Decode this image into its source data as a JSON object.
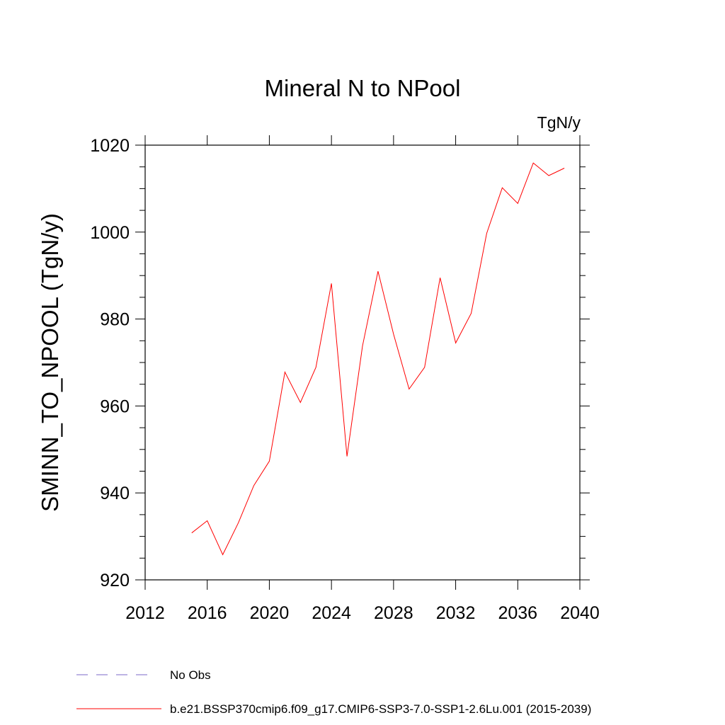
{
  "chart_data": {
    "type": "line",
    "title": "Mineral N to NPool",
    "units": "TgN/y",
    "ylabel": "SMINN_TO_NPOOL  (TgN/y)",
    "xlabel": "",
    "xlim": [
      2012,
      2040
    ],
    "ylim": [
      920,
      1020
    ],
    "xticks": [
      2012,
      2016,
      2020,
      2024,
      2028,
      2032,
      2036,
      2040
    ],
    "yticks": [
      920,
      940,
      960,
      980,
      1000,
      1020
    ],
    "x": [
      2015,
      2016,
      2017,
      2018,
      2019,
      2020,
      2021,
      2022,
      2023,
      2024,
      2025,
      2026,
      2027,
      2028,
      2029,
      2030,
      2031,
      2032,
      2033,
      2034,
      2035,
      2036,
      2037,
      2038,
      2039
    ],
    "series": [
      {
        "name": "b.e21.BSSP370cmip6.f09_g17.CMIP6-SSP3-7.0-SSP1-2.6Lu.001 (2015-2039)",
        "color": "#ff0000",
        "values": [
          930.8,
          933.6,
          925.8,
          933.1,
          941.7,
          947.3,
          967.8,
          960.8,
          968.9,
          988.2,
          948.4,
          973.8,
          991.0,
          976.5,
          963.9,
          968.9,
          989.5,
          974.5,
          981.3,
          999.7,
          1010.2,
          1006.6,
          1015.9,
          1013.0,
          1014.7
        ]
      }
    ],
    "legend": {
      "placement": "bottom-left",
      "entries": [
        {
          "label": "No Obs",
          "color": "#7b68c8",
          "style": "dashed"
        },
        {
          "label": "b.e21.BSSP370cmip6.f09_g17.CMIP6-SSP3-7.0-SSP1-2.6Lu.001 (2015-2039)",
          "color": "#ff0000",
          "style": "solid"
        }
      ]
    }
  }
}
